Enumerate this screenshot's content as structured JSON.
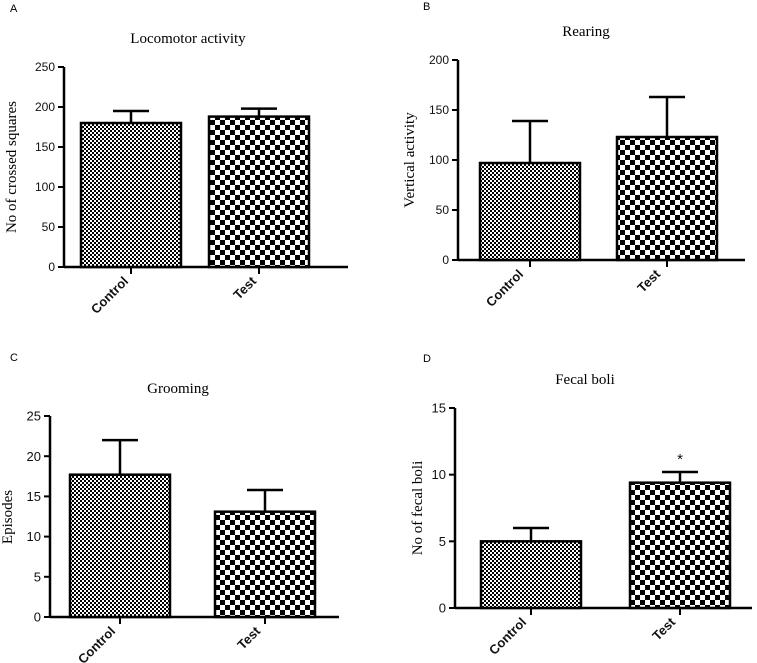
{
  "chart_data": [
    {
      "panel": "A",
      "type": "bar",
      "title": "Locomotor activity",
      "xlabel": "",
      "ylabel": "No of crossed squares",
      "ylim": [
        0,
        250
      ],
      "yticks": [
        0,
        50,
        100,
        150,
        200,
        250
      ],
      "categories": [
        "Control",
        "Test"
      ],
      "values": [
        180,
        188
      ],
      "errors": [
        15,
        10
      ],
      "annotations": [
        "",
        ""
      ]
    },
    {
      "panel": "B",
      "type": "bar",
      "title": "Rearing",
      "xlabel": "",
      "ylabel": "Vertical activity",
      "ylim": [
        0,
        200
      ],
      "yticks": [
        0,
        50,
        100,
        150,
        200
      ],
      "categories": [
        "Control",
        "Test"
      ],
      "values": [
        97,
        123
      ],
      "errors": [
        42,
        40
      ],
      "annotations": [
        "",
        ""
      ]
    },
    {
      "panel": "C",
      "type": "bar",
      "title": "Grooming",
      "xlabel": "",
      "ylabel": "Episodes",
      "ylim": [
        0,
        25
      ],
      "yticks": [
        0,
        5,
        10,
        15,
        20,
        25
      ],
      "categories": [
        "Control",
        "Test"
      ],
      "values": [
        17.7,
        13.1
      ],
      "errors": [
        4.3,
        2.7
      ],
      "annotations": [
        "",
        ""
      ]
    },
    {
      "panel": "D",
      "type": "bar",
      "title": "Fecal boli",
      "xlabel": "",
      "ylabel": "No of fecal boli",
      "ylim": [
        0,
        15
      ],
      "yticks": [
        0,
        5,
        10,
        15
      ],
      "categories": [
        "Control",
        "Test"
      ],
      "values": [
        5.0,
        9.4
      ],
      "errors": [
        1.0,
        0.8
      ],
      "annotations": [
        "",
        "*"
      ]
    }
  ],
  "colors": {
    "axis": "#000000",
    "text": "#111111",
    "pattern_fg": "#000000",
    "pattern_bg": "#ffffff"
  }
}
